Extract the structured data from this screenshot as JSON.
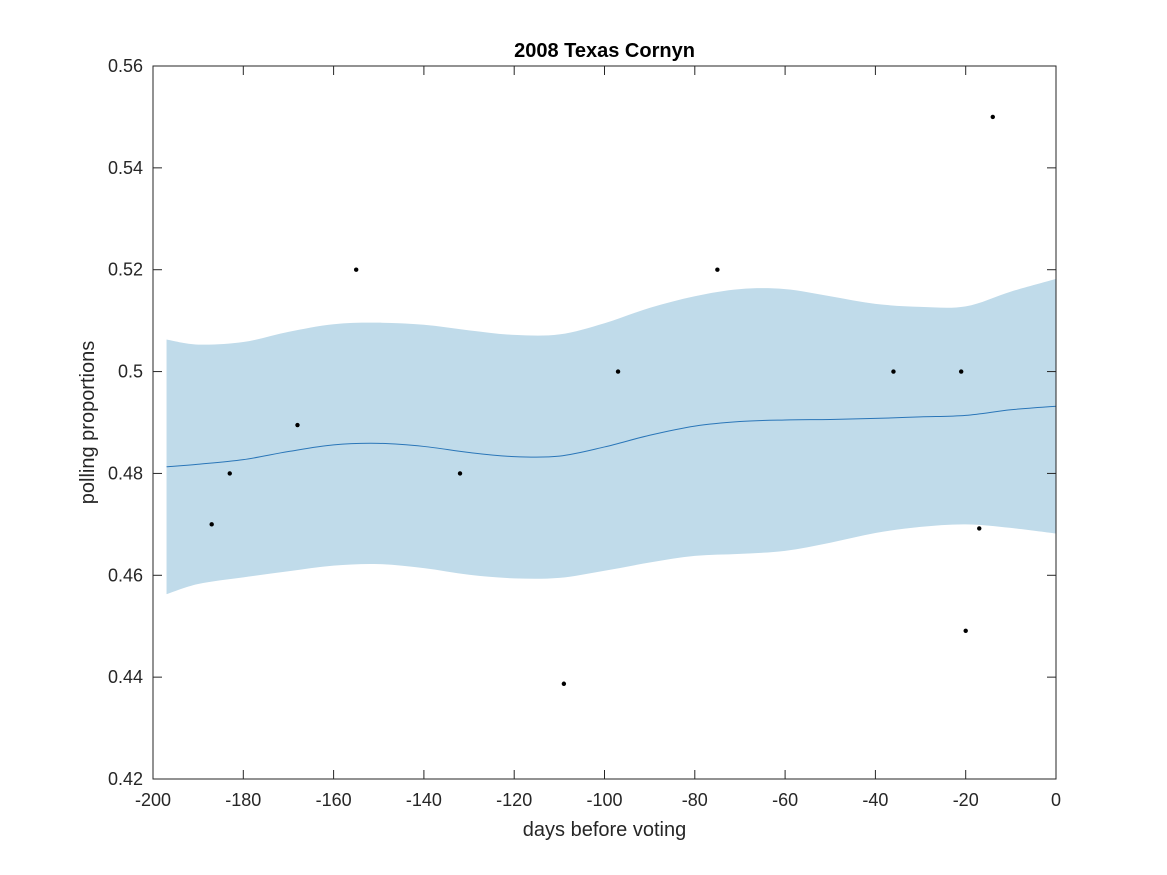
{
  "chart_data": {
    "type": "scatter",
    "title": "2008 Texas Cornyn",
    "xlabel": "days before voting",
    "ylabel": "polling proportions",
    "xlim": [
      -200,
      0
    ],
    "ylim": [
      0.42,
      0.56
    ],
    "x_ticks": [
      -200,
      -180,
      -160,
      -140,
      -120,
      -100,
      -80,
      -60,
      -40,
      -20,
      0
    ],
    "x_tick_labels": [
      "-200",
      "-180",
      "-160",
      "-140",
      "-120",
      "-100",
      "-80",
      "-60",
      "-40",
      "-20",
      "0"
    ],
    "y_ticks": [
      0.42,
      0.44,
      0.46,
      0.48,
      0.5,
      0.52,
      0.54,
      0.56
    ],
    "y_tick_labels": [
      "0.42",
      "0.44",
      "0.46",
      "0.48",
      "0.5",
      "0.52",
      "0.54",
      "0.56"
    ],
    "grid": false,
    "points": [
      {
        "x": -187,
        "y": 0.47
      },
      {
        "x": -183,
        "y": 0.48
      },
      {
        "x": -168,
        "y": 0.4895
      },
      {
        "x": -155,
        "y": 0.52
      },
      {
        "x": -132,
        "y": 0.48
      },
      {
        "x": -109,
        "y": 0.4387
      },
      {
        "x": -97,
        "y": 0.5
      },
      {
        "x": -75,
        "y": 0.52
      },
      {
        "x": -36,
        "y": 0.5
      },
      {
        "x": -21,
        "y": 0.5
      },
      {
        "x": -20,
        "y": 0.4491
      },
      {
        "x": -17,
        "y": 0.4692
      },
      {
        "x": -14,
        "y": 0.55
      }
    ],
    "trend": {
      "x": [
        -197,
        -190,
        -180,
        -170,
        -160,
        -150,
        -140,
        -130,
        -120,
        -110,
        -100,
        -90,
        -80,
        -70,
        -60,
        -50,
        -40,
        -30,
        -20,
        -10,
        0
      ],
      "mean": [
        0.4813,
        0.4818,
        0.4827,
        0.4843,
        0.4856,
        0.4859,
        0.4853,
        0.4841,
        0.4833,
        0.4834,
        0.4852,
        0.4875,
        0.4893,
        0.4902,
        0.4905,
        0.4906,
        0.4908,
        0.4911,
        0.4914,
        0.4925,
        0.4932
      ],
      "upper": [
        0.5063,
        0.5053,
        0.5058,
        0.5078,
        0.5093,
        0.5096,
        0.5092,
        0.5081,
        0.5072,
        0.5073,
        0.5095,
        0.5125,
        0.5148,
        0.5162,
        0.5162,
        0.5148,
        0.5133,
        0.5127,
        0.5128,
        0.5157,
        0.5182
      ],
      "lower": [
        0.4563,
        0.4583,
        0.4596,
        0.4608,
        0.4619,
        0.4622,
        0.4614,
        0.4601,
        0.4594,
        0.4595,
        0.4609,
        0.4625,
        0.4638,
        0.4642,
        0.4648,
        0.4664,
        0.4683,
        0.4695,
        0.47,
        0.4693,
        0.4682
      ]
    },
    "colors": {
      "band": "#c0dbea",
      "line": "#2a76b8",
      "points": "#000000",
      "axes": "#262626"
    }
  }
}
